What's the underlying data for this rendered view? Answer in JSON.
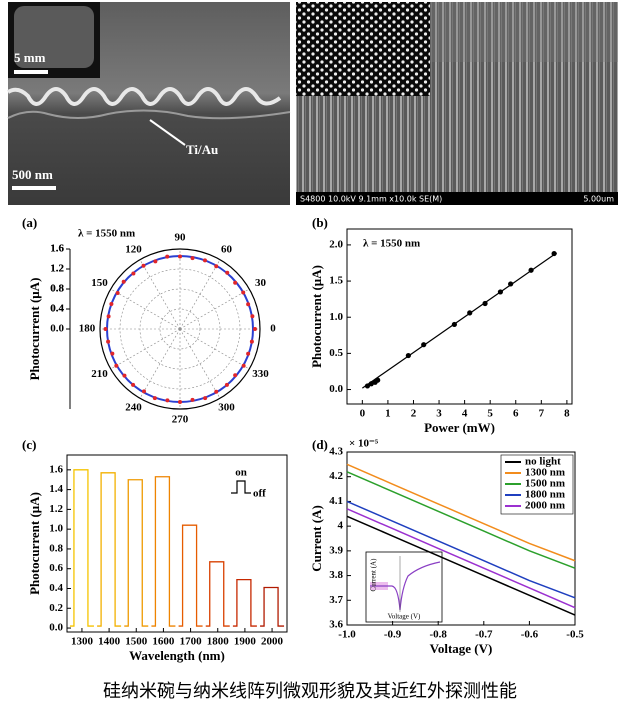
{
  "images": [
    {
      "inset_scale": "5 mm",
      "scale": "500 nm",
      "annotation": "Ti/Au"
    },
    {
      "info": "S4800 10.0kV 9.1mm x10.0k SE(M)",
      "scale": "5.00um"
    }
  ],
  "chart_data": [
    {
      "type": "polar",
      "panel": "(a)",
      "annotation": "λ = 1550 nm",
      "ylabel": "Photocurrent (μA)",
      "rlim": [
        0,
        1.6
      ],
      "rticks": [
        0.4,
        0.8,
        1.2,
        1.6
      ],
      "thetaticks": [
        0,
        30,
        60,
        90,
        120,
        150,
        180,
        210,
        240,
        270,
        300,
        330
      ],
      "yticks": [
        {
          "value": -1.6,
          "label": "1.6"
        },
        {
          "value": -1.2,
          "label": "1.2"
        },
        {
          "value": -0.8,
          "label": "0.8"
        },
        {
          "value": -0.4,
          "label": "0.4"
        },
        {
          "value": 0,
          "label": "0.0"
        },
        0.4,
        0.8,
        1.2,
        1.6
      ],
      "points": {
        "color": "#e0262b",
        "theta": [
          0,
          10,
          20,
          30,
          40,
          50,
          60,
          70,
          80,
          90,
          100,
          110,
          120,
          130,
          140,
          150,
          160,
          170,
          180,
          190,
          200,
          210,
          220,
          230,
          240,
          250,
          260,
          270,
          280,
          290,
          300,
          310,
          320,
          330,
          340,
          350
        ],
        "r": [
          1.5,
          1.47,
          1.45,
          1.46,
          1.44,
          1.47,
          1.45,
          1.46,
          1.44,
          1.45,
          1.47,
          1.44,
          1.46,
          1.45,
          1.47,
          1.44,
          1.46,
          1.45,
          1.49,
          1.46,
          1.44,
          1.47,
          1.45,
          1.46,
          1.44,
          1.47,
          1.45,
          1.46,
          1.44,
          1.47,
          1.45,
          1.46,
          1.44,
          1.47,
          1.45,
          1.46
        ]
      },
      "fit": {
        "color": "#2a3fd1",
        "r": 1.46
      }
    },
    {
      "type": "scatter",
      "panel": "(b)",
      "annotation": "λ = 1550 nm",
      "xlabel": "Power (mW)",
      "ylabel": "Photocurrent (μA)",
      "xlim": [
        -0.6,
        8.2
      ],
      "xticks": [
        0,
        1,
        2,
        3,
        4,
        5,
        6,
        7,
        8
      ],
      "ylim": [
        -0.2,
        2.22
      ],
      "yticks": [
        {
          "value": 0,
          "label": "0.0"
        },
        0.5,
        {
          "value": 1,
          "label": "1.0"
        },
        1.5,
        {
          "value": 2,
          "label": "2.0"
        }
      ],
      "color": "#000000",
      "x": [
        0.2,
        0.35,
        0.5,
        0.6,
        1.8,
        2.4,
        3.6,
        4.2,
        4.8,
        5.4,
        5.8,
        6.6,
        7.5
      ],
      "values": [
        0.05,
        0.08,
        0.1,
        0.13,
        0.47,
        0.62,
        0.9,
        1.06,
        1.19,
        1.35,
        1.46,
        1.65,
        1.88
      ],
      "fit": {
        "x": [
          0,
          7.6
        ],
        "y": [
          0.02,
          1.89
        ]
      }
    },
    {
      "type": "pulse",
      "panel": "(c)",
      "xlabel": "Wavelength (nm)",
      "ylabel": "Photocurrent (μA)",
      "inset_labels": [
        "on",
        "off"
      ],
      "xlim": [
        1245,
        2055
      ],
      "xticks": [
        1300,
        1400,
        1500,
        1600,
        1700,
        1800,
        1900,
        2000
      ],
      "ylim": [
        -0.04,
        1.75
      ],
      "yticks": [
        {
          "value": 0,
          "label": "0.0"
        },
        0.2,
        0.4,
        0.6,
        0.8,
        {
          "value": 1,
          "label": "1.0"
        },
        1.2,
        1.4,
        1.6
      ],
      "baseline": 0.02,
      "x": [
        1300,
        1400,
        1500,
        1600,
        1700,
        1800,
        1900,
        2000
      ],
      "values": [
        1.6,
        1.57,
        1.5,
        1.53,
        1.04,
        0.67,
        0.49,
        0.41
      ],
      "colors": [
        "#f5c400",
        "#f2b000",
        "#ef9a00",
        "#ee8400",
        "#e65c00",
        "#d84000",
        "#c62800",
        "#b11a00"
      ]
    },
    {
      "type": "line",
      "panel": "(d)",
      "multiplier": "× 10⁻⁵",
      "xlabel": "Voltage (V)",
      "ylabel": "Current (A)",
      "inset": {
        "xlabel": "Voltage (V)",
        "ylabel": "Current (A)"
      },
      "xlim": [
        -1,
        -0.5
      ],
      "xticks": [
        {
          "value": -1,
          "label": "-1.0"
        },
        -0.9,
        -0.8,
        -0.7,
        -0.6,
        -0.5
      ],
      "ylim": [
        3.6,
        4.3
      ],
      "yticks": [
        3.6,
        3.7,
        3.8,
        3.9,
        4,
        4.1,
        4.2,
        4.3
      ],
      "legend": "upper right",
      "x": [
        -1,
        -0.9,
        -0.8,
        -0.7,
        -0.6,
        -0.5
      ],
      "series": [
        {
          "name": "no light",
          "color": "#000000",
          "values": [
            4.04,
            3.96,
            3.88,
            3.8,
            3.72,
            3.64
          ]
        },
        {
          "name": "1300 nm",
          "color": "#f28c1c",
          "values": [
            4.25,
            4.17,
            4.09,
            4.01,
            3.93,
            3.86
          ]
        },
        {
          "name": "1500 nm",
          "color": "#2ca02c",
          "values": [
            4.22,
            4.14,
            4.06,
            3.98,
            3.9,
            3.83
          ]
        },
        {
          "name": "1800 nm",
          "color": "#1f3fbf",
          "values": [
            4.1,
            4.02,
            3.94,
            3.86,
            3.78,
            3.71
          ]
        },
        {
          "name": "2000 nm",
          "color": "#9b30d0",
          "values": [
            4.07,
            3.99,
            3.91,
            3.83,
            3.75,
            3.67
          ]
        }
      ]
    }
  ],
  "caption": "硅纳米碗与纳米线阵列微观形貌及其近红外探测性能"
}
